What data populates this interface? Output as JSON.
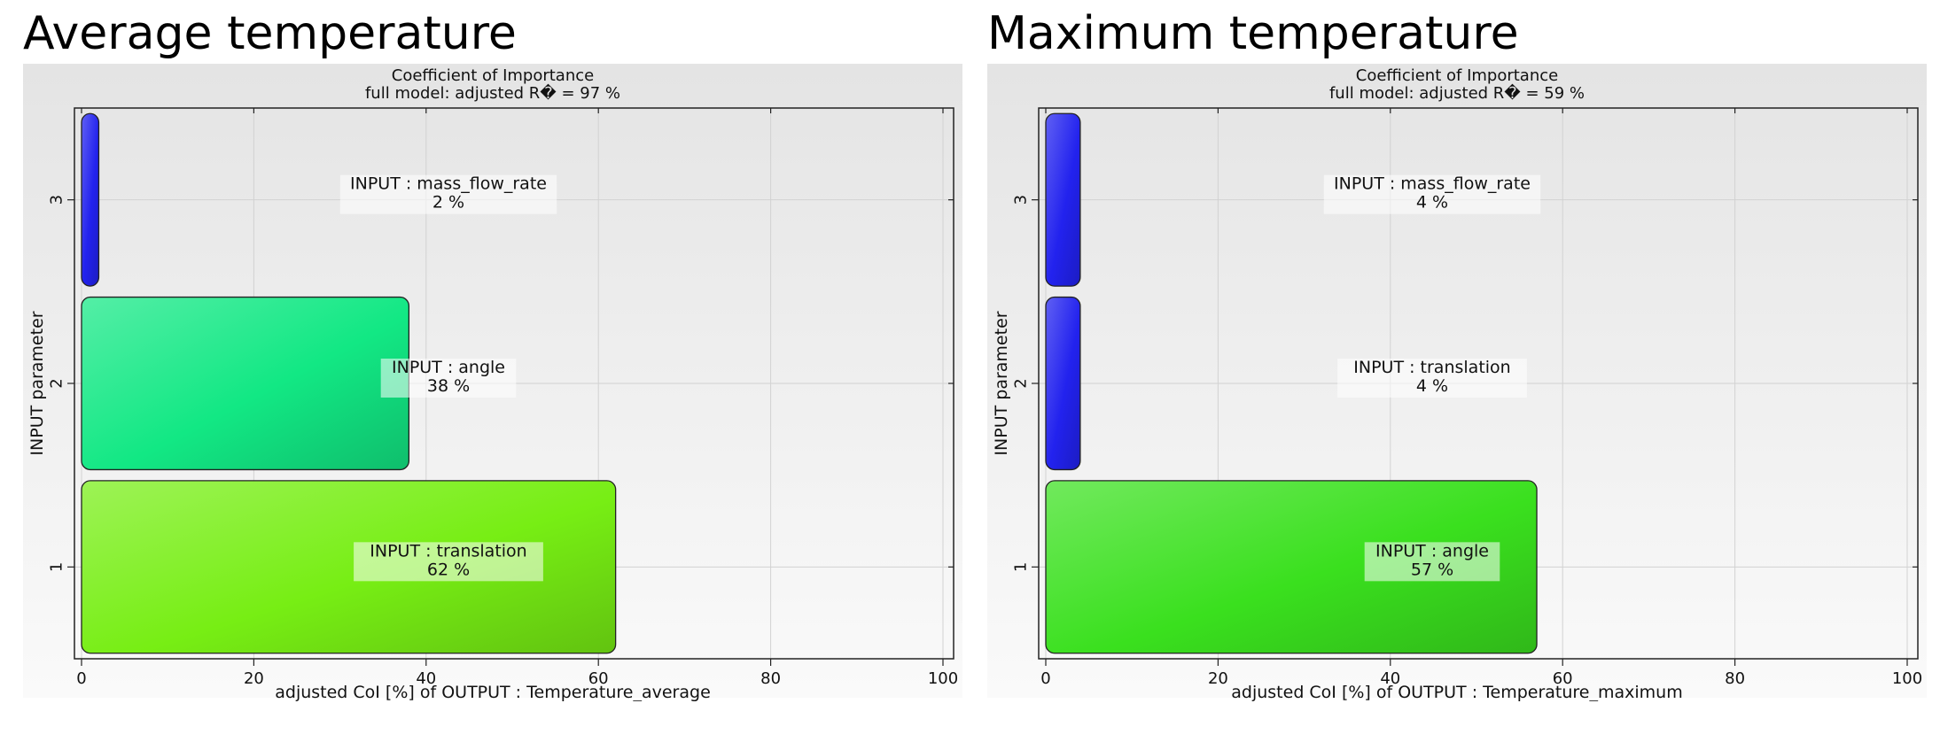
{
  "chart_data": [
    {
      "type": "bar",
      "orientation": "horizontal",
      "panel_title": "Average temperature",
      "title": "Coefficient of Importance",
      "subtitle": "full model: adjusted R� = 97 %",
      "xlabel": "adjusted CoI [%] of OUTPUT : Temperature_average",
      "ylabel": "INPUT parameter",
      "xlim": [
        0,
        100
      ],
      "xticks": [
        "0",
        "20",
        "40",
        "60",
        "80",
        "100"
      ],
      "categories": [
        "1",
        "2",
        "3"
      ],
      "values": [
        62,
        38,
        2
      ],
      "labels": [
        {
          "name": "INPUT : translation",
          "pct": "62 %"
        },
        {
          "name": "INPUT : angle",
          "pct": "38 %"
        },
        {
          "name": "INPUT : mass_flow_rate",
          "pct": "2 %"
        }
      ],
      "colors": [
        "#77ee14",
        "#12e884",
        "#2222ee"
      ],
      "grid": true
    },
    {
      "type": "bar",
      "orientation": "horizontal",
      "panel_title": "Maximum temperature",
      "title": "Coefficient of Importance",
      "subtitle": "full model: adjusted R� = 59 %",
      "xlabel": "adjusted CoI [%] of OUTPUT : Temperature_maximum",
      "ylabel": "INPUT parameter",
      "xlim": [
        0,
        100
      ],
      "xticks": [
        "0",
        "20",
        "40",
        "60",
        "80",
        "100"
      ],
      "categories": [
        "1",
        "2",
        "3"
      ],
      "values": [
        57,
        4,
        4
      ],
      "labels": [
        {
          "name": "INPUT : angle",
          "pct": "57 %"
        },
        {
          "name": "INPUT : translation",
          "pct": "4 %"
        },
        {
          "name": "INPUT : mass_flow_rate",
          "pct": "4 %"
        }
      ],
      "colors": [
        "#3ae01e",
        "#2222ee",
        "#2222ee"
      ],
      "grid": true
    }
  ]
}
